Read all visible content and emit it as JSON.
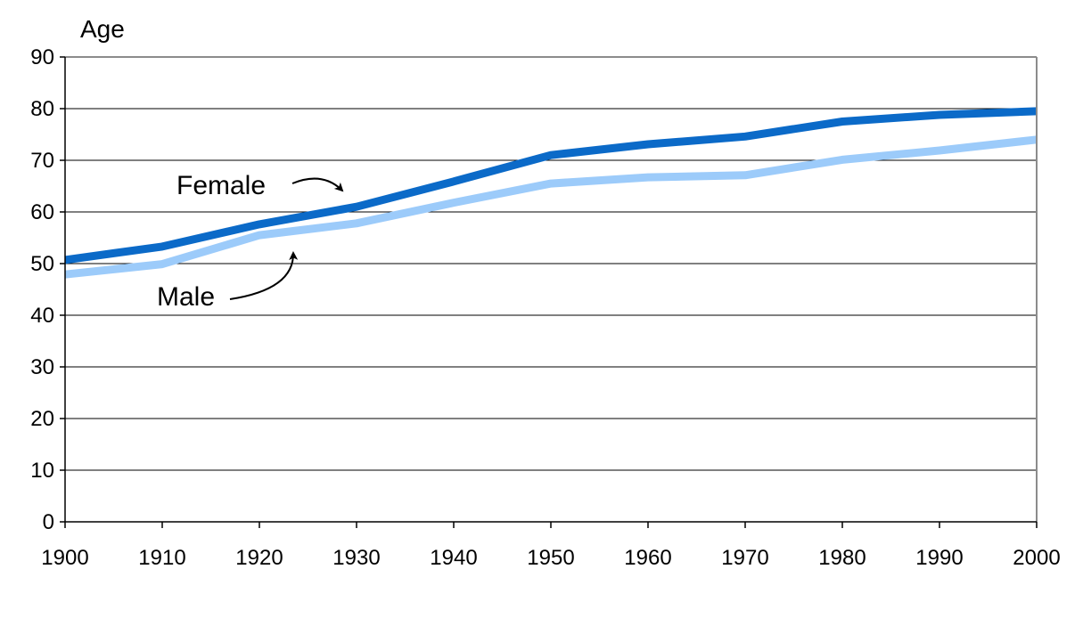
{
  "chart_data": {
    "type": "line",
    "title": "",
    "ylabel": "Age",
    "xlabel": "",
    "x": [
      1900,
      1910,
      1920,
      1930,
      1940,
      1950,
      1960,
      1970,
      1980,
      1990,
      2000
    ],
    "ylim": [
      0,
      90
    ],
    "xlim": [
      1900,
      2000
    ],
    "yticks": [
      0,
      10,
      20,
      30,
      40,
      50,
      60,
      70,
      80,
      90
    ],
    "xticks": [
      1900,
      1910,
      1920,
      1930,
      1940,
      1950,
      1960,
      1970,
      1980,
      1990,
      2000
    ],
    "grid": "horizontal",
    "legend": "none",
    "series": [
      {
        "name": "Female",
        "color": "#0b6ac8",
        "values": [
          50.7,
          53.3,
          57.6,
          61.0,
          65.9,
          71.0,
          73.1,
          74.6,
          77.5,
          78.8,
          79.5
        ]
      },
      {
        "name": "Male",
        "color": "#9ccbfa",
        "values": [
          47.9,
          49.9,
          55.5,
          57.8,
          61.8,
          65.5,
          66.7,
          67.1,
          70.1,
          71.9,
          74.0
        ]
      }
    ],
    "annotations": [
      {
        "text": "Female",
        "series": "Female"
      },
      {
        "text": "Male",
        "series": "Male"
      }
    ]
  }
}
